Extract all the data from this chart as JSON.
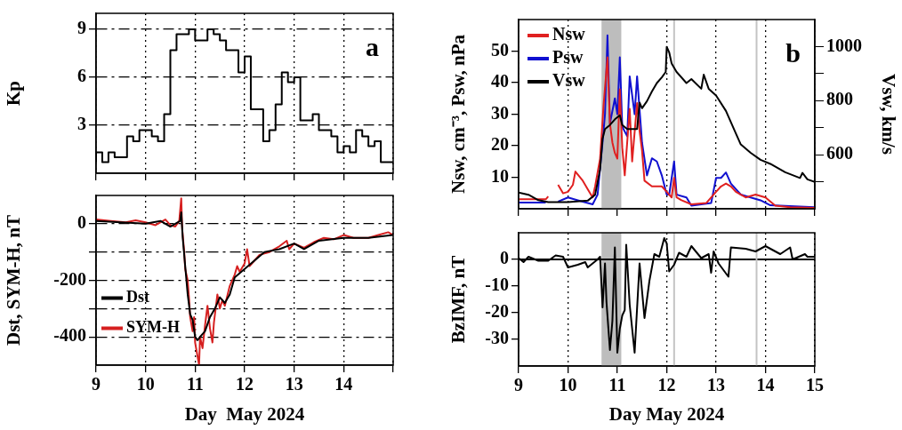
{
  "chart_data": [
    {
      "type": "step",
      "ylabel": "Kp",
      "xlim": [
        9,
        15
      ],
      "xticks": [
        9,
        10,
        11,
        12,
        13,
        14,
        15
      ],
      "ylim": [
        0,
        10
      ],
      "yticks": [
        3,
        6,
        9
      ],
      "grid": true,
      "tick_labels": "y",
      "annotations": [
        "a"
      ],
      "series": [
        {
          "color": "#000000",
          "x": [
            9,
            9.125,
            9.25,
            9.375,
            9.5,
            9.625,
            9.75,
            9.875,
            10,
            10.125,
            10.25,
            10.375,
            10.5,
            10.625,
            10.75,
            10.875,
            11,
            11.125,
            11.25,
            11.375,
            11.5,
            11.625,
            11.75,
            11.875,
            12,
            12.125,
            12.25,
            12.375,
            12.5,
            12.625,
            12.75,
            12.875,
            13,
            13.125,
            13.25,
            13.375,
            13.5,
            13.625,
            13.75,
            13.875,
            14,
            14.125,
            14.25,
            14.375,
            14.5,
            14.625,
            14.75,
            14.875,
            15
          ],
          "values": [
            0.7,
            1.3,
            0.7,
            1.3,
            1,
            1,
            2.3,
            2,
            2.7,
            2.7,
            2.3,
            2,
            3.7,
            7.7,
            8.7,
            8.7,
            9,
            8.3,
            8.3,
            9,
            8.7,
            8.3,
            7.7,
            7.7,
            6.3,
            7.3,
            4,
            4,
            2,
            2.7,
            4.3,
            6.3,
            5.7,
            6,
            3.3,
            3.3,
            3.7,
            2.7,
            2.7,
            2.3,
            1.3,
            1.7,
            1.3,
            2.7,
            2.3,
            1.7,
            2,
            0.7,
            0.7
          ]
        }
      ]
    },
    {
      "type": "line",
      "xlabel": "Day  May 2024",
      "ylabel": "Dst, SYM-H, nT",
      "xlim": [
        9,
        15
      ],
      "xticks": [
        9,
        10,
        11,
        12,
        13,
        14,
        {
          "value": 15,
          "label": null
        }
      ],
      "ylim": [
        -500,
        100
      ],
      "yticks": [
        -400,
        {
          "value": -300,
          "label": null
        },
        -200,
        {
          "value": -100,
          "label": null
        },
        0
      ],
      "grid": true,
      "legend": "left",
      "series": [
        {
          "name": "Dst",
          "color": "#000000",
          "x": [
            9,
            9.5,
            10,
            10.3,
            10.5,
            10.6,
            10.7,
            10.72,
            10.75,
            10.8,
            10.85,
            10.9,
            10.95,
            11,
            11.05,
            11.1,
            11.2,
            11.3,
            11.4,
            11.5,
            11.6,
            11.7,
            11.8,
            12,
            12.2,
            12.4,
            12.7,
            13,
            13.2,
            13.5,
            14,
            14.5,
            15
          ],
          "values": [
            10,
            5,
            0,
            10,
            -10,
            0,
            10,
            40,
            -50,
            -150,
            -250,
            -320,
            -340,
            -400,
            -412,
            -400,
            -380,
            -330,
            -300,
            -260,
            -280,
            -250,
            -190,
            -160,
            -130,
            -100,
            -90,
            -70,
            -90,
            -60,
            -50,
            -50,
            -40
          ]
        },
        {
          "name": "SYM-H",
          "color": "#d62020",
          "x": [
            9,
            9.3,
            9.6,
            9.8,
            10,
            10.2,
            10.4,
            10.5,
            10.6,
            10.68,
            10.72,
            10.74,
            10.78,
            10.8,
            10.85,
            10.88,
            10.9,
            10.95,
            10.98,
            11,
            11.05,
            11.08,
            11.1,
            11.15,
            11.2,
            11.25,
            11.3,
            11.35,
            11.38,
            11.45,
            11.5,
            11.55,
            11.6,
            11.7,
            11.8,
            11.85,
            11.9,
            12,
            12.05,
            12.1,
            12.2,
            12.3,
            12.5,
            12.7,
            12.85,
            12.9,
            13,
            13.2,
            13.4,
            13.6,
            13.8,
            14,
            14.2,
            14.5,
            14.7,
            14.9,
            15
          ],
          "values": [
            15,
            10,
            5,
            12,
            5,
            -5,
            15,
            -5,
            -10,
            10,
            90,
            -20,
            -100,
            -160,
            -200,
            -270,
            -330,
            -380,
            -330,
            -420,
            -470,
            -500,
            -400,
            -440,
            -360,
            -290,
            -370,
            -420,
            -350,
            -250,
            -300,
            -270,
            -290,
            -220,
            -180,
            -150,
            -170,
            -140,
            -90,
            -150,
            -130,
            -110,
            -100,
            -80,
            -60,
            -90,
            -70,
            -85,
            -65,
            -50,
            -55,
            -40,
            -50,
            -50,
            -40,
            -30,
            -40
          ]
        }
      ]
    },
    {
      "type": "line",
      "ylabel": "Nsw, cm⁻³, Psw, nPa",
      "y2label": "Vsw, km/s",
      "xlim": [
        9,
        15
      ],
      "xticks": [
        9,
        10,
        11,
        12,
        13,
        14,
        15
      ],
      "ylim": [
        0,
        60
      ],
      "yticks": [
        10,
        20,
        30,
        40,
        50
      ],
      "y2lim": [
        400,
        1100
      ],
      "y2ticks": [
        {
          "value": 500,
          "label": null
        },
        600,
        {
          "value": 700,
          "label": null
        },
        800,
        {
          "value": 900,
          "label": null
        },
        1000
      ],
      "grid": "x",
      "tick_labels": "y",
      "legend": "top left",
      "annotations": [
        "b"
      ],
      "bands": [
        {
          "axis": "x",
          "from": 10.68,
          "to": 11.08,
          "color": "#bdbdbd"
        }
      ],
      "ref_lines": [
        {
          "axis": "x",
          "value": 12.15,
          "color": "#c4c4c4"
        },
        {
          "axis": "x",
          "value": 13.82,
          "color": "#c4c4c4"
        }
      ],
      "series": [
        {
          "name": "Nsw",
          "color": "#e02020",
          "x": [
            9,
            9.55,
            9.6,
            9.62,
            9.8,
            9.9,
            10,
            10.1,
            10.15,
            10.3,
            10.4,
            10.5,
            10.55,
            10.65,
            10.72,
            10.8,
            10.85,
            10.9,
            10.95,
            11,
            11.05,
            11.1,
            11.15,
            11.25,
            11.3,
            11.4,
            11.45,
            11.5,
            11.55,
            11.7,
            11.9,
            12,
            12.1,
            12.15,
            12.2,
            12.3,
            12.5,
            12.8,
            13,
            13.1,
            13.2,
            13.3,
            13.4,
            13.6,
            13.8,
            14,
            14.2,
            14.5,
            15
          ],
          "values": [
            3,
            3,
            3.9,
            null,
            7.6,
            4.9,
            5.4,
            7.6,
            11.8,
            8.9,
            6.2,
            3.6,
            7.1,
            15.9,
            32.6,
            48,
            27,
            21,
            17.7,
            15.9,
            37.9,
            19.4,
            10.6,
            31.7,
            15,
            33.5,
            24.7,
            18.5,
            8.9,
            7.1,
            7.1,
            5.4,
            3.6,
            9.8,
            3.6,
            2.7,
            1.4,
            1.8,
            5.4,
            7.1,
            8,
            7.1,
            5.4,
            3.6,
            4.5,
            3.6,
            1,
            0.5,
            0.3
          ]
        },
        {
          "name": "Psw",
          "color": "#1010d0",
          "x": [
            9,
            9.55,
            9.62,
            9.8,
            10,
            10.2,
            10.5,
            10.6,
            10.7,
            10.75,
            10.8,
            10.85,
            10.95,
            11,
            11.05,
            11.1,
            11.2,
            11.25,
            11.35,
            11.4,
            11.5,
            11.6,
            11.7,
            11.8,
            11.9,
            12,
            12.05,
            12.15,
            12.2,
            12.4,
            12.5,
            12.9,
            13,
            13.1,
            13.2,
            13.3,
            13.5,
            13.7,
            13.9,
            14.1,
            15
          ],
          "values": [
            2,
            2,
            null,
            2.3,
            3.6,
            2.7,
            1.4,
            4.5,
            21,
            30,
            55,
            27,
            35,
            30,
            48,
            26,
            23,
            42,
            30,
            42,
            21,
            10.6,
            16,
            15,
            10.6,
            4.5,
            4.5,
            15,
            4.5,
            3.6,
            1,
            1.8,
            9.8,
            9.8,
            11.5,
            8,
            4.5,
            3.6,
            2.7,
            1.1,
            0.5
          ]
        },
        {
          "name": "Vsw",
          "color": "#000000",
          "axis": "y2",
          "x": [
            9,
            9.2,
            9.4,
            9.6,
            10,
            10.4,
            10.55,
            10.65,
            10.7,
            10.75,
            10.85,
            10.95,
            11.05,
            11.1,
            11.2,
            11.4,
            11.45,
            11.5,
            11.6,
            11.7,
            11.8,
            11.9,
            11.98,
            12,
            12.05,
            12.1,
            12.2,
            12.4,
            12.5,
            12.7,
            12.75,
            12.85,
            13,
            13.2,
            13.4,
            13.5,
            13.7,
            13.9,
            14.1,
            14.4,
            14.7,
            14.75,
            14.85,
            15
          ],
          "values": [
            460,
            452,
            432,
            425,
            425,
            430,
            452,
            545,
            659,
            695,
            710,
            731,
            746,
            710,
            695,
            695,
            793,
            772,
            798,
            834,
            865,
            886,
            906,
            999,
            979,
            937,
            906,
            865,
            880,
            844,
            896,
            844,
            819,
            762,
            679,
            638,
            607,
            581,
            566,
            535,
            514,
            533,
            509,
            499
          ]
        }
      ]
    },
    {
      "type": "line",
      "xlabel": "Day May 2024",
      "ylabel": "BzIMF, nT",
      "xlim": [
        9,
        15
      ],
      "xticks": [
        9,
        10,
        11,
        12,
        13,
        14,
        15
      ],
      "ylim": [
        -40,
        10
      ],
      "yticks": [
        -30,
        -20,
        -10,
        0
      ],
      "grid": "x",
      "bands": [
        {
          "axis": "x",
          "from": 10.68,
          "to": 11.08,
          "color": "#bdbdbd"
        }
      ],
      "ref_lines": [
        {
          "axis": "y",
          "value": 0,
          "color": "#000000"
        },
        {
          "axis": "x",
          "value": 12.15,
          "color": "#c4c4c4"
        },
        {
          "axis": "x",
          "value": 13.82,
          "color": "#c4c4c4"
        }
      ],
      "series": [
        {
          "color": "#000000",
          "x": [
            9,
            9.1,
            9.2,
            9.4,
            9.6,
            9.75,
            9.9,
            10,
            10.2,
            10.35,
            10.4,
            10.6,
            10.65,
            10.68,
            10.7,
            10.75,
            10.78,
            10.85,
            10.9,
            10.95,
            11,
            11.05,
            11.1,
            11.15,
            11.18,
            11.25,
            11.35,
            11.45,
            11.55,
            11.65,
            11.75,
            11.85,
            11.95,
            12,
            12.05,
            12.15,
            12.25,
            12.4,
            12.5,
            12.7,
            12.85,
            12.9,
            12.95,
            13.05,
            13.25,
            13.3,
            13.6,
            13.8,
            14,
            14.3,
            14.5,
            14.55,
            14.8,
            14.85,
            15
          ],
          "values": [
            0.5,
            -1,
            1,
            -0.5,
            -0.5,
            1.5,
            1,
            -3,
            -2,
            -1,
            -3,
            0,
            1,
            -10,
            -18,
            -1.5,
            -16,
            -34,
            -23,
            4.5,
            -35,
            -26,
            -21,
            -19,
            5.5,
            -17,
            -35,
            -1.5,
            -22,
            -8,
            2,
            1,
            8,
            6,
            -4.5,
            -2,
            2.5,
            1,
            5,
            0.5,
            2,
            -5,
            3,
            -1.5,
            -6.5,
            4.5,
            4,
            3,
            5,
            2,
            4.5,
            0,
            2,
            1,
            1
          ]
        }
      ]
    }
  ]
}
